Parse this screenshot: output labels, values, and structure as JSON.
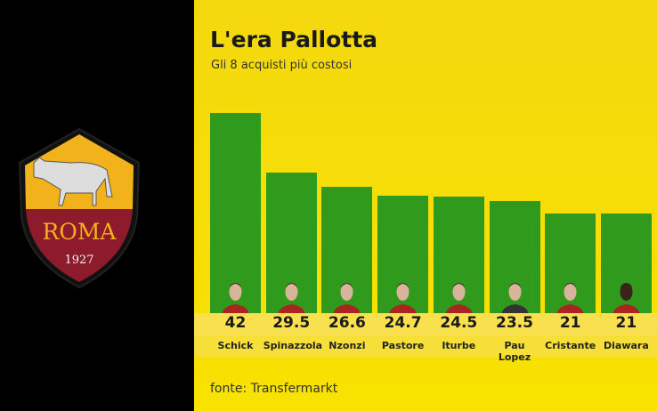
{
  "logo": {
    "text": "ROMA",
    "year": "1927"
  },
  "chart_data": {
    "type": "bar",
    "title": "L'era Pallotta",
    "subtitle": "Gli 8 acquisti più costosi",
    "categories": [
      "Schick",
      "Spinazzola",
      "Nzonzi",
      "Pastore",
      "Iturbe",
      "Pau Lopez",
      "Cristante",
      "Diawara"
    ],
    "values": [
      42,
      29.5,
      26.6,
      24.7,
      24.5,
      23.5,
      21,
      21
    ],
    "value_labels": [
      "42",
      "29.5",
      "26.6",
      "24.7",
      "24.5",
      "23.5",
      "21",
      "21"
    ],
    "ylim": [
      0,
      42
    ],
    "grid": false,
    "colors": {
      "bar": "#2f9a1c",
      "background": "#f5dc0a",
      "shirt": "#a8261f"
    },
    "source": "fonte: Transfermarkt"
  }
}
